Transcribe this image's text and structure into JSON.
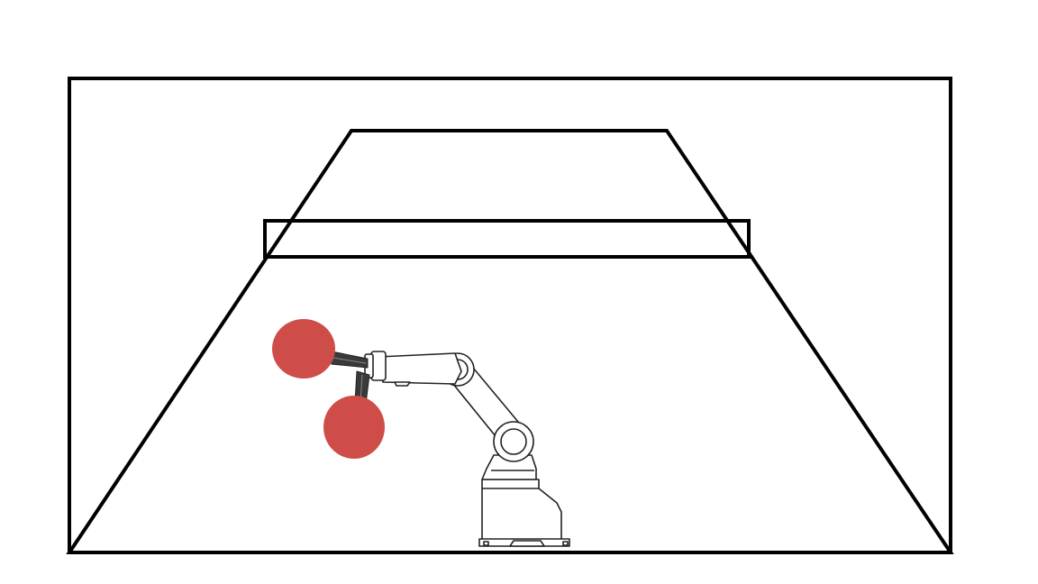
{
  "scene": {
    "subject": "robot-arm-with-dual-paddles",
    "colors": {
      "background": "#ffffff",
      "outline": "#000000",
      "paddle_rubber": "#cf4d49",
      "paddle_handle": "#3a3a3a",
      "robot_body": "#ffffff",
      "robot_stroke": "#222222"
    }
  }
}
